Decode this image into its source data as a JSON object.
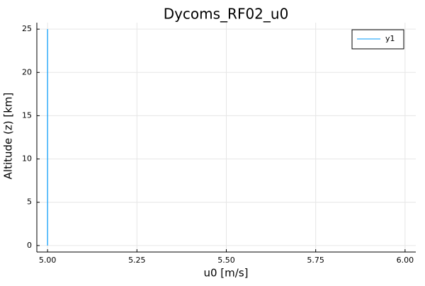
{
  "chart_data": {
    "type": "line",
    "title": "Dycoms_RF02_u0",
    "xlabel": "u0 [m/s]",
    "ylabel": "Altitude (z) [km]",
    "xlim": [
      4.97,
      6.03
    ],
    "ylim": [
      -0.75,
      25.75
    ],
    "xticks": [
      5.0,
      5.25,
      5.5,
      5.75,
      6.0
    ],
    "xtick_labels": [
      "5.00",
      "5.25",
      "5.50",
      "5.75",
      "6.00"
    ],
    "yticks": [
      0,
      5,
      10,
      15,
      20,
      25
    ],
    "ytick_labels": [
      "0",
      "5",
      "10",
      "15",
      "20",
      "25"
    ],
    "grid": true,
    "legend_position": "top-right",
    "series": [
      {
        "name": "y1",
        "color": "#009AFA",
        "x": [
          5.0,
          5.0
        ],
        "y": [
          0,
          25
        ]
      }
    ]
  }
}
